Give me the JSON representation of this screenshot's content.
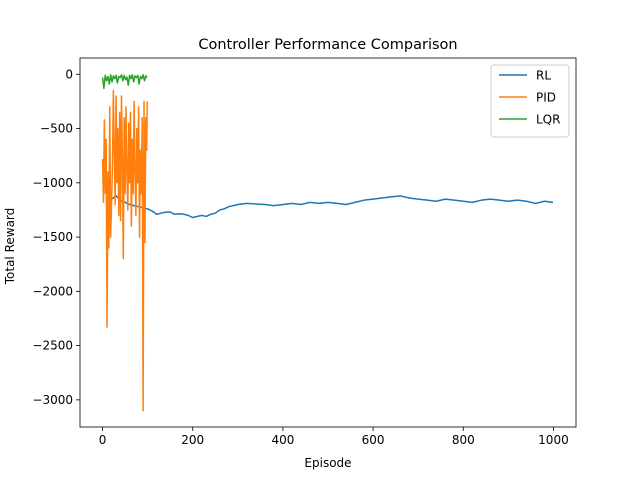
{
  "chart_data": {
    "type": "line",
    "title": "Controller Performance Comparison",
    "xlabel": "Episode",
    "ylabel": "Total Reward",
    "xlim": [
      -50,
      1050
    ],
    "ylim": [
      -3250,
      150
    ],
    "xticks": [
      0,
      200,
      400,
      600,
      800,
      1000
    ],
    "yticks": [
      0,
      -500,
      -1000,
      -1500,
      -2000,
      -2500,
      -3000
    ],
    "grid": false,
    "legend_position": "top-right",
    "series": [
      {
        "name": "RL",
        "color": "#1f77b4",
        "x": [
          0,
          10,
          20,
          30,
          40,
          50,
          60,
          70,
          80,
          90,
          100,
          110,
          120,
          130,
          140,
          150,
          160,
          170,
          180,
          190,
          200,
          210,
          220,
          230,
          240,
          250,
          260,
          270,
          280,
          290,
          300,
          320,
          340,
          360,
          380,
          400,
          420,
          440,
          460,
          480,
          500,
          520,
          540,
          560,
          580,
          600,
          620,
          640,
          660,
          680,
          700,
          720,
          740,
          760,
          780,
          800,
          820,
          840,
          860,
          880,
          900,
          920,
          940,
          960,
          980,
          999
        ],
        "y": [
          -800,
          -1100,
          -1150,
          -1120,
          -1160,
          -1180,
          -1200,
          -1210,
          -1220,
          -1230,
          -1240,
          -1260,
          -1290,
          -1280,
          -1270,
          -1270,
          -1290,
          -1285,
          -1290,
          -1300,
          -1320,
          -1310,
          -1300,
          -1310,
          -1290,
          -1280,
          -1250,
          -1240,
          -1220,
          -1210,
          -1200,
          -1190,
          -1195,
          -1200,
          -1210,
          -1200,
          -1190,
          -1200,
          -1180,
          -1190,
          -1180,
          -1190,
          -1200,
          -1180,
          -1160,
          -1150,
          -1140,
          -1130,
          -1120,
          -1140,
          -1150,
          -1160,
          -1170,
          -1150,
          -1160,
          -1170,
          -1180,
          -1160,
          -1150,
          -1160,
          -1170,
          -1160,
          -1170,
          -1190,
          -1170,
          -1180
        ]
      },
      {
        "name": "PID",
        "color": "#ff7f0e",
        "x": [
          0,
          2,
          4,
          6,
          8,
          10,
          12,
          14,
          16,
          18,
          20,
          22,
          24,
          26,
          28,
          30,
          32,
          34,
          36,
          38,
          40,
          42,
          44,
          46,
          48,
          50,
          52,
          54,
          56,
          58,
          60,
          62,
          64,
          66,
          68,
          70,
          72,
          74,
          76,
          78,
          80,
          82,
          84,
          86,
          88,
          90,
          92,
          94,
          96,
          98,
          99
        ],
        "y": [
          -780,
          -1180,
          -420,
          -1100,
          -600,
          -2330,
          -900,
          -1600,
          -300,
          -1500,
          -1200,
          -850,
          -150,
          -700,
          -1200,
          -200,
          -1000,
          -500,
          -1300,
          -350,
          -1350,
          -200,
          -800,
          -1700,
          -400,
          -1100,
          -300,
          -900,
          -1250,
          -450,
          -1000,
          -350,
          -1400,
          -600,
          -1100,
          -250,
          -900,
          -1300,
          -500,
          -1000,
          -300,
          -1500,
          -700,
          -1100,
          -400,
          -3100,
          -250,
          -1550,
          -400,
          -700,
          -250
        ]
      },
      {
        "name": "LQR",
        "color": "#2ca02c",
        "x": [
          0,
          3,
          6,
          9,
          12,
          15,
          18,
          21,
          24,
          27,
          30,
          33,
          36,
          39,
          42,
          45,
          48,
          51,
          54,
          57,
          60,
          63,
          66,
          69,
          72,
          75,
          78,
          81,
          84,
          87,
          90,
          93,
          96,
          99
        ],
        "y": [
          -30,
          -130,
          -10,
          -60,
          -20,
          -90,
          -5,
          -70,
          -15,
          -40,
          -10,
          -80,
          -20,
          -30,
          -5,
          -60,
          -10,
          -50,
          -25,
          -100,
          -10,
          -40,
          -5,
          -70,
          -15,
          -30,
          -10,
          -90,
          -20,
          -40,
          -5,
          -60,
          -15,
          -30
        ]
      }
    ]
  }
}
